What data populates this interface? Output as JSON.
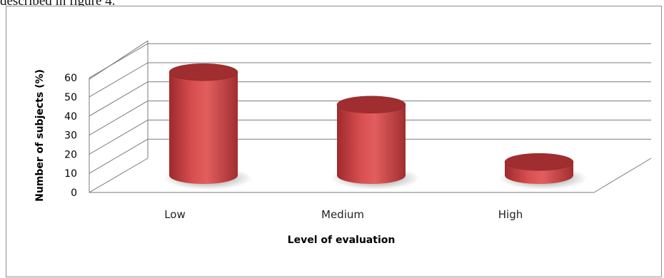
{
  "caption_fragment": "described in figure 4.",
  "chart_data": {
    "type": "bar",
    "style": "3d-cylinder",
    "categories": [
      "Low",
      "Medium",
      "High"
    ],
    "values": [
      57,
      40,
      10
    ],
    "xlabel": "Level of evaluation",
    "ylabel": "Number of subjects (%)",
    "ylim": [
      0,
      60
    ],
    "yticks": [
      0,
      10,
      20,
      30,
      40,
      50,
      60
    ],
    "grid": true,
    "legend": "none",
    "colors": {
      "bar_body": "#c0393b",
      "bar_highlight": "#e86a6a",
      "bar_top": "#a02d2f",
      "gridline": "#7a7a7a"
    }
  }
}
